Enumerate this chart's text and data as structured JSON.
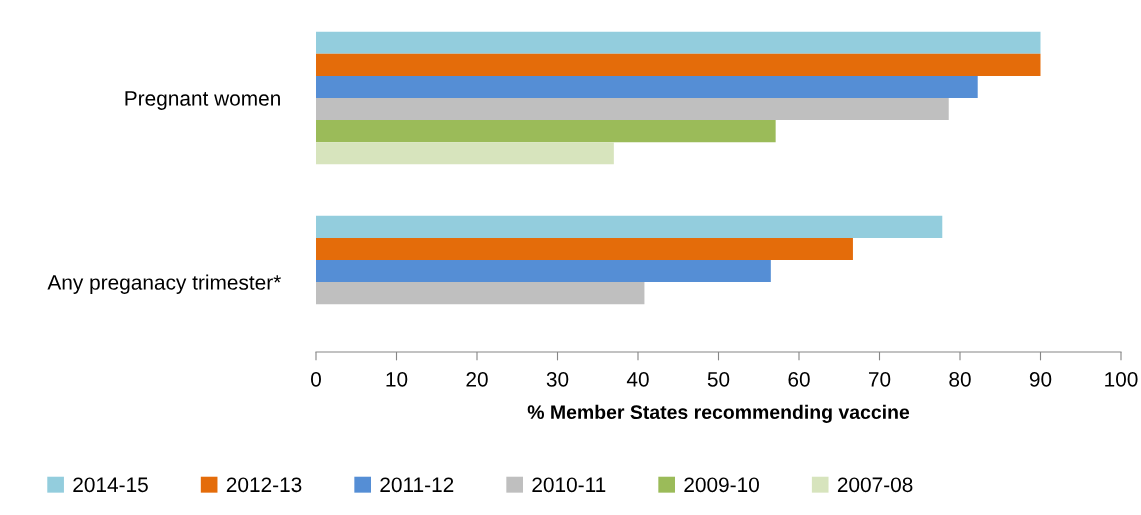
{
  "chart_data": {
    "type": "bar",
    "orientation": "horizontal",
    "xlabel": "% Member States recommending vaccine",
    "categories": [
      "Pregnant women",
      "Any preganacy trimester*"
    ],
    "series": [
      {
        "name": "2014-15",
        "color": "#93cddd",
        "values": [
          90,
          77.8
        ]
      },
      {
        "name": "2012-13",
        "color": "#e46c0a",
        "values": [
          90,
          66.7
        ]
      },
      {
        "name": "2011-12",
        "color": "#558ed5",
        "values": [
          82.2,
          56.5
        ]
      },
      {
        "name": "2010-11",
        "color": "#bfbfbf",
        "values": [
          78.6,
          40.8
        ]
      },
      {
        "name": "2009-10",
        "color": "#9bbb59",
        "values": [
          57.1,
          null
        ]
      },
      {
        "name": "2007-08",
        "color": "#d7e4bd",
        "values": [
          37.0,
          null
        ]
      }
    ],
    "xlim": [
      0,
      100
    ],
    "xticks": [
      0,
      10,
      20,
      30,
      40,
      50,
      60,
      70,
      80,
      90,
      100
    ],
    "grid": false,
    "legend": "bottom"
  }
}
